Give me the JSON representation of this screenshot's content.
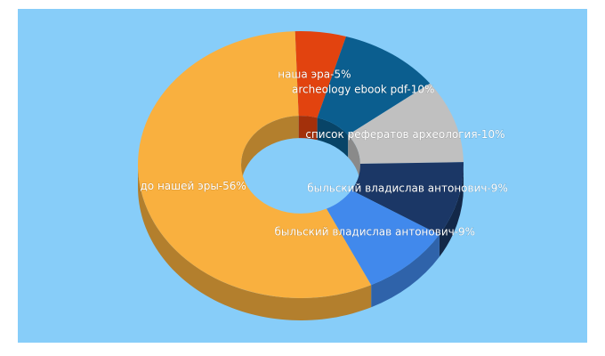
{
  "chart_data": {
    "type": "pie",
    "donut": true,
    "three_d": true,
    "values": [
      5,
      10,
      10,
      9,
      9,
      56
    ],
    "value_labels": [
      "наша эра-5%",
      "archeology ebook pdf-10%",
      "список рефератов археология-10%",
      "быльский владислав антонович-9%",
      "быльский владислав антонович-9%",
      "до нашей эры-56%"
    ],
    "colors": [
      "#e2430f",
      "#0b5e8f",
      "#c0c0c0",
      "#1b3766",
      "#4189ec",
      "#f9b03f"
    ],
    "background": "#87cdf9"
  }
}
